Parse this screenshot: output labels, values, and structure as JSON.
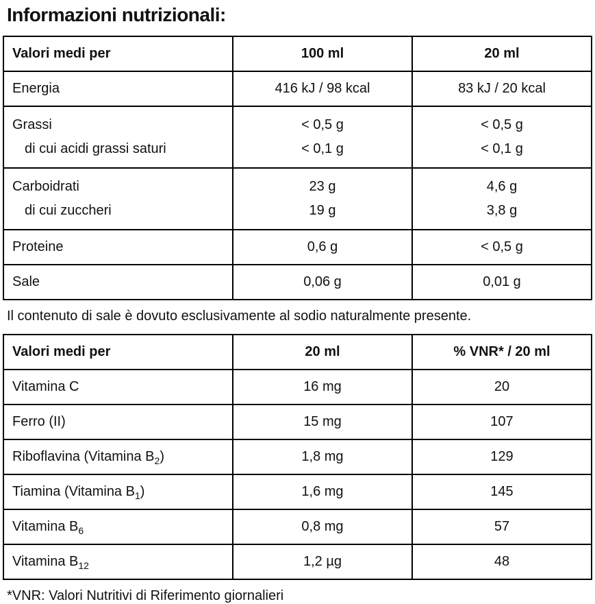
{
  "page": {
    "title": "Informazioni nutrizionali:",
    "note": "Il contenuto di sale è dovuto esclusivamente al sodio naturalmente presente.",
    "footnote": "*VNR: Valori Nutritivi di Riferimento giornalieri"
  },
  "table1": {
    "header": {
      "col1": "Valori medi per",
      "col2": "100 ml",
      "col3": "20 ml"
    },
    "rows": [
      {
        "label": "Energia",
        "v1": "416 kJ / 98 kcal",
        "v2": "83 kJ / 20 kcal"
      },
      {
        "label": "Grassi",
        "v1": "< 0,5 g",
        "v2": "< 0,5 g"
      },
      {
        "label": "di cui acidi grassi saturi",
        "v1": "< 0,1 g",
        "v2": "< 0,1 g"
      },
      {
        "label": "Carboidrati",
        "v1": "23 g",
        "v2": "4,6 g"
      },
      {
        "label": "di cui zuccheri",
        "v1": "19 g",
        "v2": "3,8 g"
      },
      {
        "label": "Proteine",
        "v1": "0,6 g",
        "v2": "< 0,5 g"
      },
      {
        "label": "Sale",
        "v1": "0,06 g",
        "v2": "0,01 g"
      }
    ]
  },
  "table2": {
    "header": {
      "col1": "Valori medi per",
      "col2": "20 ml",
      "col3": "% VNR* / 20 ml"
    },
    "rows": [
      {
        "label_main": "Vitamina C",
        "label_sub": "",
        "label_suffix": "",
        "v1": "16 mg",
        "v2": "20"
      },
      {
        "label_main": "Ferro (II)",
        "label_sub": "",
        "label_suffix": "",
        "v1": "15 mg",
        "v2": "107"
      },
      {
        "label_main": "Riboflavina (Vitamina B",
        "label_sub": "2",
        "label_suffix": ")",
        "v1": "1,8 mg",
        "v2": "129"
      },
      {
        "label_main": "Tiamina (Vitamina B",
        "label_sub": "1",
        "label_suffix": ")",
        "v1": "1,6 mg",
        "v2": "145"
      },
      {
        "label_main": "Vitamina B",
        "label_sub": "6",
        "label_suffix": "",
        "v1": "0,8 mg",
        "v2": "57"
      },
      {
        "label_main": "Vitamina B",
        "label_sub": "12",
        "label_suffix": "",
        "v1": "1,2 µg",
        "v2": "48"
      }
    ]
  }
}
